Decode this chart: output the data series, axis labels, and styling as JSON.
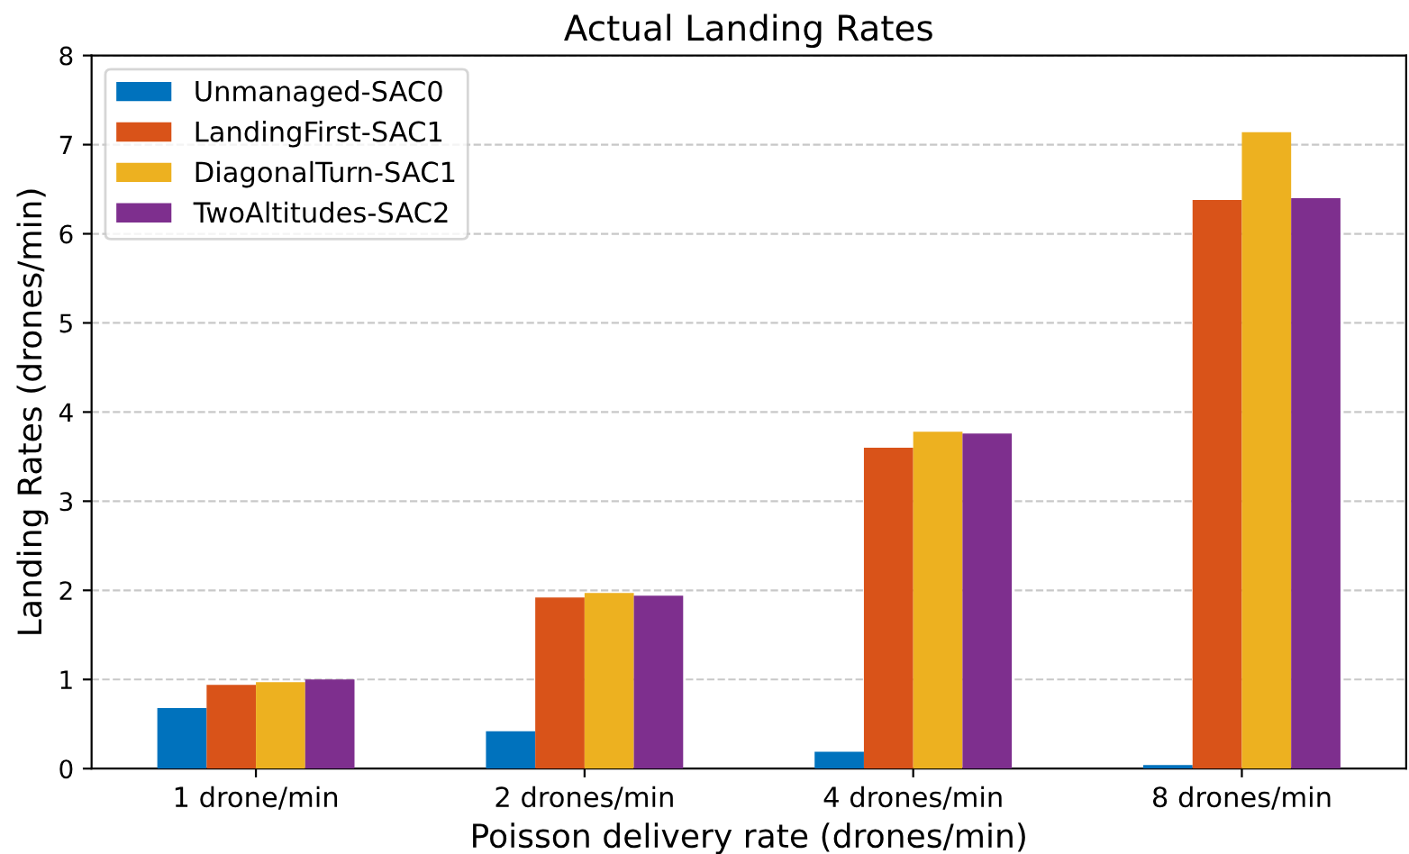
{
  "chart_data": {
    "type": "bar",
    "title": "Actual Landing Rates",
    "xlabel": "Poisson delivery rate (drones/min)",
    "ylabel": "Landing Rates (drones/min)",
    "categories": [
      "1 drone/min",
      "2 drones/min",
      "4 drones/min",
      "8 drones/min"
    ],
    "series": [
      {
        "name": "Unmanaged-SAC0",
        "color": "#0072bd",
        "values": [
          0.68,
          0.42,
          0.19,
          0.04
        ]
      },
      {
        "name": "LandingFirst-SAC1",
        "color": "#d95319",
        "values": [
          0.94,
          1.92,
          3.6,
          6.38
        ]
      },
      {
        "name": "DiagonalTurn-SAC1",
        "color": "#edb120",
        "values": [
          0.97,
          1.97,
          3.78,
          7.14
        ]
      },
      {
        "name": "TwoAltitudes-SAC2",
        "color": "#7e2f8e",
        "values": [
          1.0,
          1.94,
          3.76,
          6.4
        ]
      }
    ],
    "ylim": [
      0,
      8
    ],
    "yticks": [
      0,
      1,
      2,
      3,
      4,
      5,
      6,
      7,
      8
    ],
    "grid": "y",
    "legend": "top left"
  }
}
